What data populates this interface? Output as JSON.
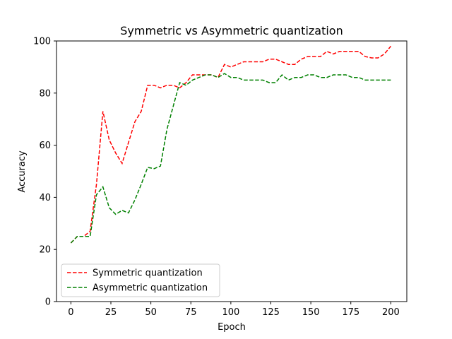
{
  "chart_data": {
    "type": "line",
    "title": "Symmetric vs Asymmetric quantization",
    "xlabel": "Epoch",
    "ylabel": "Accuracy",
    "xlim": [
      -9,
      210
    ],
    "ylim": [
      0,
      100
    ],
    "xticks": [
      0,
      25,
      50,
      75,
      100,
      125,
      150,
      175,
      200
    ],
    "yticks": [
      0,
      20,
      40,
      60,
      80,
      100
    ],
    "grid": false,
    "legend_position": "lower-left",
    "series": [
      {
        "name": "Symmetric quantization",
        "color": "#ff0000",
        "dash": "dashed",
        "x": [
          0,
          4,
          8,
          12,
          16,
          20,
          24,
          28,
          32,
          36,
          40,
          44,
          48,
          52,
          56,
          60,
          64,
          68,
          72,
          76,
          80,
          84,
          88,
          92,
          96,
          100,
          104,
          108,
          112,
          116,
          120,
          124,
          128,
          132,
          136,
          140,
          144,
          148,
          152,
          156,
          160,
          164,
          168,
          172,
          176,
          180,
          184,
          188,
          192,
          196,
          200
        ],
        "values": [
          22.5,
          25,
          25,
          27,
          45,
          73,
          62,
          57,
          53,
          61,
          69,
          73,
          83,
          83,
          82,
          83,
          83,
          82,
          84,
          87,
          87,
          87,
          87,
          86,
          91,
          90,
          91,
          92,
          92,
          92,
          92,
          93,
          93,
          92,
          91,
          91,
          93,
          94,
          94,
          94,
          96,
          95,
          96,
          96,
          96,
          96,
          94,
          93.5,
          93.5,
          95,
          98
        ]
      },
      {
        "name": "Asymmetric quantization",
        "color": "#008000",
        "dash": "dashed",
        "x": [
          0,
          4,
          8,
          12,
          16,
          20,
          24,
          28,
          32,
          36,
          40,
          44,
          48,
          52,
          56,
          60,
          64,
          68,
          72,
          76,
          80,
          84,
          88,
          92,
          96,
          100,
          104,
          108,
          112,
          116,
          120,
          124,
          128,
          132,
          136,
          140,
          144,
          148,
          152,
          156,
          160,
          164,
          168,
          172,
          176,
          180,
          184,
          188,
          192,
          196,
          200
        ],
        "values": [
          22.5,
          25,
          25,
          25,
          41,
          44,
          36,
          33.5,
          35,
          34,
          39,
          45,
          51.5,
          51,
          52,
          66,
          75,
          84,
          83,
          85,
          86,
          87,
          87,
          86,
          87.5,
          86,
          86,
          85,
          85,
          85,
          85,
          84,
          84,
          87,
          85,
          86,
          86,
          87,
          87,
          86,
          86,
          87,
          87,
          87,
          86,
          86,
          85,
          85,
          85,
          85,
          85
        ]
      }
    ]
  }
}
